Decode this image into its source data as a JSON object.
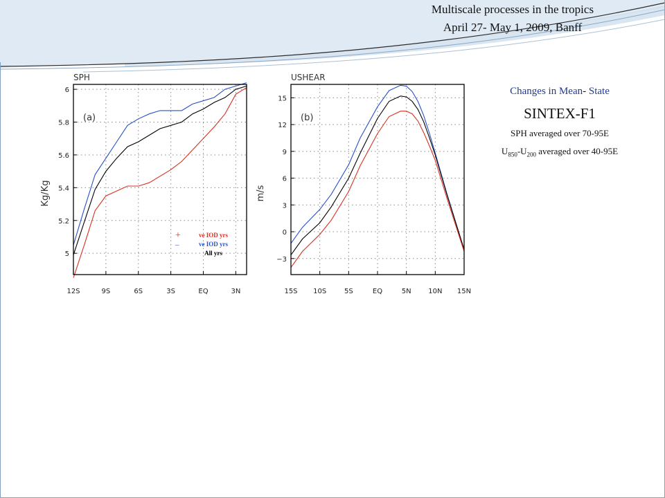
{
  "header": {
    "line1": "Multiscale processes in the tropics",
    "line2": "April 27- May 1, 2009, Banff"
  },
  "side_text": {
    "heading_a": "Changes in Mean",
    "heading_dash": "- ",
    "heading_b": "State",
    "model": "SINTEX-F1",
    "sph_note": "SPH averaged over 70-95E",
    "shear_u": "U",
    "shear_sub1": "850",
    "shear_dash": "-U",
    "shear_sub2": "200",
    "shear_rest": " averaged over 40-95E"
  },
  "colors": {
    "positive": "#d83020",
    "negative": "#2850c8",
    "all": "#000000",
    "heading": "#1f3a93",
    "frame": "#7fa0c0"
  },
  "chart_data": [
    {
      "type": "line",
      "title": "SPH",
      "panel_label": "(a)",
      "ylabel": "Kg/Kg",
      "xlabel": "",
      "x": [
        -12,
        -11,
        -10,
        -9,
        -8,
        -7,
        -6,
        -5,
        -4,
        -3,
        -2,
        -1,
        0,
        1,
        2,
        3,
        4
      ],
      "xlim": [
        -12,
        4
      ],
      "ylim": [
        4.87,
        6.03
      ],
      "xticks": [
        -12,
        -9,
        -6,
        -3,
        0,
        3
      ],
      "xtick_labels": [
        "12S",
        "9S",
        "6S",
        "3S",
        "EQ",
        "3N"
      ],
      "yticks": [
        5.0,
        5.2,
        5.4,
        5.6,
        5.8,
        6.0
      ],
      "ytick_labels": [
        "5",
        "5.2",
        "5.4",
        "5.6",
        "5.8",
        "6"
      ],
      "grid": true,
      "legend": [
        {
          "symbol": "+",
          "text": " ve IOD yrs",
          "color": "#d83020"
        },
        {
          "symbol": "–",
          "text": " ve IOD yrs",
          "color": "#2850c8"
        },
        {
          "symbol": "",
          "text": "All yrs",
          "color": "#000000"
        }
      ],
      "series": [
        {
          "key": "negative",
          "color": "#2850c8",
          "values": [
            5.05,
            5.27,
            5.48,
            5.58,
            5.68,
            5.78,
            5.82,
            5.85,
            5.87,
            5.87,
            5.87,
            5.91,
            5.93,
            5.95,
            6.0,
            6.02,
            6.04
          ]
        },
        {
          "key": "all",
          "color": "#000000",
          "values": [
            4.99,
            5.19,
            5.39,
            5.5,
            5.58,
            5.65,
            5.68,
            5.72,
            5.76,
            5.78,
            5.8,
            5.85,
            5.88,
            5.92,
            5.95,
            6.0,
            6.02
          ]
        },
        {
          "key": "positive",
          "color": "#d83020",
          "values": [
            4.85,
            5.05,
            5.26,
            5.35,
            5.38,
            5.41,
            5.41,
            5.43,
            5.47,
            5.51,
            5.56,
            5.63,
            5.7,
            5.77,
            5.85,
            5.97,
            6.01
          ]
        }
      ]
    },
    {
      "type": "line",
      "title": "USHEAR",
      "panel_label": "(b)",
      "ylabel": "m/s",
      "xlabel": "",
      "x": [
        -15,
        -13,
        -10,
        -8,
        -5,
        -3,
        0,
        2,
        4,
        5,
        6,
        7,
        8,
        9,
        10,
        12,
        15
      ],
      "xlim": [
        -15,
        15
      ],
      "ylim": [
        -4.8,
        16.5
      ],
      "xticks": [
        -15,
        -10,
        -5,
        0,
        5,
        10,
        15
      ],
      "xtick_labels": [
        "15S",
        "10S",
        "5S",
        "EQ",
        "5N",
        "10N",
        "15N"
      ],
      "yticks": [
        -3,
        0,
        3,
        6,
        9,
        12,
        15
      ],
      "ytick_labels": [
        "−3",
        "0",
        "3",
        "6",
        "9",
        "12",
        "15"
      ],
      "grid": true,
      "series": [
        {
          "key": "negative",
          "color": "#2850c8",
          "values": [
            -1.3,
            0.5,
            2.5,
            4.2,
            7.5,
            10.5,
            14.0,
            15.8,
            16.4,
            16.3,
            15.7,
            14.6,
            13.0,
            11.0,
            8.8,
            4.3,
            -2.0
          ]
        },
        {
          "key": "all",
          "color": "#000000",
          "values": [
            -2.6,
            -0.8,
            1.0,
            2.8,
            6.0,
            8.8,
            12.7,
            14.6,
            15.2,
            15.1,
            14.6,
            13.7,
            12.3,
            10.5,
            8.6,
            4.2,
            -2.0
          ]
        },
        {
          "key": "positive",
          "color": "#d83020",
          "values": [
            -4.0,
            -2.2,
            -0.3,
            1.3,
            4.5,
            7.4,
            11.0,
            12.9,
            13.5,
            13.5,
            13.2,
            12.4,
            11.1,
            9.6,
            8.0,
            3.8,
            -2.2
          ]
        }
      ]
    }
  ]
}
